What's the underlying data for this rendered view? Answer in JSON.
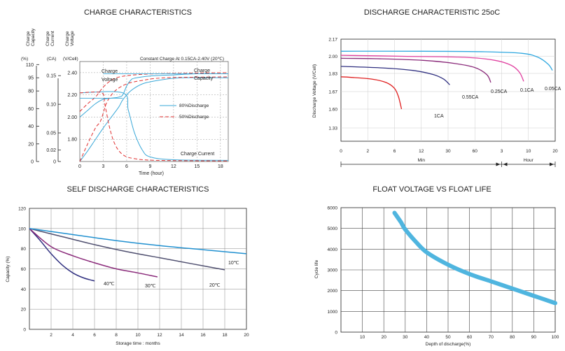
{
  "chart_data": [
    {
      "type": "line",
      "title": "CHARGE CHARACTERISTICS",
      "axis_headers": [
        "Charge Capacity",
        "Charge Current",
        "Charge Voltage"
      ],
      "axis_units": [
        "(%)",
        "(CA)",
        "(V/Cell)"
      ],
      "capacity_ticks": [
        "110",
        "95",
        "80",
        "60",
        "40",
        "20",
        "0"
      ],
      "current_ticks": [
        "0.15",
        "0.10",
        "0.05",
        "0.02",
        "0"
      ],
      "voltage_ticks": [
        "2.40",
        "2.20",
        "2.00",
        "1.80"
      ],
      "x_ticks": [
        "0",
        "3",
        "6",
        "9",
        "12",
        "15",
        "18"
      ],
      "xlabel": "Time (hour)",
      "note": "Constant Charge At 0.15CA-2.40V (20℃)",
      "labels": {
        "voltage": [
          "Charge",
          "Voltage"
        ],
        "capacity": [
          "Charge",
          "Capacity"
        ],
        "current": "Charge Current"
      },
      "legend": [
        "80%Discharge",
        "50%Discharge"
      ],
      "xlim": [
        0,
        19
      ],
      "vlim": [
        1.6,
        2.5
      ],
      "series": [
        {
          "name": "80%Discharge",
          "curve": "voltage",
          "points": [
            [
              0,
              2.0
            ],
            [
              1,
              2.06
            ],
            [
              2,
              2.12
            ],
            [
              3,
              2.16
            ],
            [
              4,
              2.17
            ],
            [
              5,
              2.18
            ],
            [
              5.5,
              2.2
            ],
            [
              6,
              2.28
            ],
            [
              6.5,
              2.33
            ],
            [
              7,
              2.35
            ],
            [
              9,
              2.37
            ],
            [
              12,
              2.38
            ],
            [
              15,
              2.39
            ],
            [
              19,
              2.39
            ]
          ]
        },
        {
          "name": "50%Discharge",
          "curve": "voltage",
          "points": [
            [
              0,
              2.05
            ],
            [
              1,
              2.12
            ],
            [
              2,
              2.18
            ],
            [
              3,
              2.27
            ],
            [
              4,
              2.33
            ],
            [
              5,
              2.36
            ],
            [
              7,
              2.38
            ],
            [
              10,
              2.39
            ],
            [
              19,
              2.4
            ]
          ]
        },
        {
          "name": "80%Discharge",
          "curve": "capacity",
          "points": [
            [
              0,
              0
            ],
            [
              1,
              12
            ],
            [
              2,
              25
            ],
            [
              3,
              38
            ],
            [
              4,
              50
            ],
            [
              5,
              62
            ],
            [
              5.5,
              70
            ],
            [
              6.5,
              80
            ],
            [
              8,
              88
            ],
            [
              10,
              92
            ],
            [
              13,
              95
            ],
            [
              19,
              95
            ]
          ]
        },
        {
          "name": "50%Discharge",
          "curve": "capacity",
          "points": [
            [
              0,
              0
            ],
            [
              1,
              20
            ],
            [
              2,
              38
            ],
            [
              2.6,
              45
            ],
            [
              3,
              55
            ],
            [
              3.5,
              68
            ],
            [
              4.5,
              80
            ],
            [
              6,
              88
            ],
            [
              8,
              92
            ],
            [
              11,
              95
            ],
            [
              19,
              96
            ]
          ]
        },
        {
          "name": "80%Discharge",
          "curve": "current",
          "points": [
            [
              0,
              0.12
            ],
            [
              5.5,
              0.12
            ],
            [
              6.2,
              0.09
            ],
            [
              7,
              0.05
            ],
            [
              8,
              0.02
            ],
            [
              9,
              0.008
            ],
            [
              12,
              0.003
            ],
            [
              19,
              0.002
            ]
          ]
        },
        {
          "name": "50%Discharge",
          "curve": "current",
          "points": [
            [
              0,
              0.12
            ],
            [
              2.8,
              0.12
            ],
            [
              3.2,
              0.1
            ],
            [
              3.8,
              0.06
            ],
            [
              4.5,
              0.03
            ],
            [
              5.5,
              0.012
            ],
            [
              7,
              0.005
            ],
            [
              10,
              0.002
            ],
            [
              19,
              0.001
            ]
          ]
        }
      ]
    },
    {
      "type": "line",
      "title": "DISCHARGE CHARACTERISTIC 25oC",
      "ylabel": "Discharge Voltage (V/Cell)",
      "y_ticks": [
        "2.17",
        "2.00",
        "1.83",
        "1.67",
        "1.60",
        "1.33"
      ],
      "x_ticks": [
        "0",
        "2",
        "6",
        "12",
        "30",
        "60",
        "3",
        "10",
        "20"
      ],
      "x_units": [
        "Min",
        "Hour"
      ],
      "series": [
        {
          "name": "1CA",
          "color": "#e02020",
          "points": [
            [
              0,
              1.8
            ],
            [
              0.5,
              1.795
            ],
            [
              1.5,
              1.78
            ],
            [
              2.2,
              1.75
            ],
            [
              2.6,
              1.7
            ],
            [
              2.8,
              1.65
            ],
            [
              2.95,
              1.6
            ]
          ]
        },
        {
          "name": "0.55CA",
          "color": "#303080",
          "points": [
            [
              0,
              1.9
            ],
            [
              2,
              1.885
            ],
            [
              3.5,
              1.86
            ],
            [
              4.5,
              1.82
            ],
            [
              5.0,
              1.78
            ],
            [
              5.3,
              1.73
            ]
          ]
        },
        {
          "name": "0.25CA",
          "color": "#8a2a7a",
          "points": [
            [
              0,
              1.98
            ],
            [
              2,
              1.975
            ],
            [
              4,
              1.96
            ],
            [
              5.5,
              1.93
            ],
            [
              6.5,
              1.89
            ],
            [
              7.1,
              1.82
            ],
            [
              7.3,
              1.75
            ]
          ]
        },
        {
          "name": "0.1CA",
          "color": "#e040a0",
          "points": [
            [
              0,
              2.01
            ],
            [
              3,
              2.0
            ],
            [
              6,
              1.99
            ],
            [
              7.5,
              1.96
            ],
            [
              8.3,
              1.91
            ],
            [
              8.7,
              1.84
            ],
            [
              8.9,
              1.76
            ]
          ]
        },
        {
          "name": "0.05CA",
          "color": "#30a8e0",
          "points": [
            [
              0,
              2.05
            ],
            [
              4,
              2.05
            ],
            [
              7,
              2.045
            ],
            [
              8.8,
              2.03
            ],
            [
              9.6,
              1.99
            ],
            [
              10.1,
              1.92
            ],
            [
              10.3,
              1.86
            ]
          ]
        }
      ]
    },
    {
      "type": "line",
      "title": "SELF DISCHARGE CHARACTERISTICS",
      "ylabel": "Capacity (%)",
      "xlabel": "Storage time : months",
      "y_ticks": [
        "120",
        "100",
        "80",
        "60",
        "40",
        "20",
        "0"
      ],
      "x_ticks": [
        "2",
        "4",
        "6",
        "8",
        "10",
        "12",
        "14",
        "16",
        "18",
        "20"
      ],
      "xlim": [
        0,
        20
      ],
      "ylim": [
        0,
        120
      ],
      "series": [
        {
          "name": "40℃",
          "color": "#303080",
          "points": [
            [
              0,
              100
            ],
            [
              1,
              88
            ],
            [
              2,
              75
            ],
            [
              3,
              64
            ],
            [
              4,
              56
            ],
            [
              5,
              51
            ],
            [
              6,
              48
            ]
          ]
        },
        {
          "name": "30℃",
          "color": "#8a2a7a",
          "points": [
            [
              0,
              100
            ],
            [
              2,
              82
            ],
            [
              4,
              73
            ],
            [
              6,
              66
            ],
            [
              8,
              60
            ],
            [
              10,
              56
            ],
            [
              11.8,
              52
            ]
          ]
        },
        {
          "name": "20℃",
          "color": "#505070",
          "points": [
            [
              0,
              100
            ],
            [
              3,
              92
            ],
            [
              6,
              84
            ],
            [
              9,
              77
            ],
            [
              12,
              71
            ],
            [
              15,
              65
            ],
            [
              18,
              59
            ]
          ]
        },
        {
          "name": "10℃",
          "color": "#2090d0",
          "points": [
            [
              0,
              100
            ],
            [
              4,
              94
            ],
            [
              8,
              88
            ],
            [
              12,
              83
            ],
            [
              16,
              79
            ],
            [
              20,
              75
            ]
          ]
        }
      ]
    },
    {
      "type": "line",
      "title": "FLOAT VOLTAGE VS FLOAT LIFE",
      "ylabel": "Cycle life",
      "xlabel": "Depth of discharge(%)",
      "y_ticks": [
        "6000",
        "5000",
        "4000",
        "3000",
        "2000",
        "1000",
        "0"
      ],
      "x_ticks": [
        "10",
        "20",
        "30",
        "40",
        "50",
        "60",
        "70",
        "80",
        "90",
        "100"
      ],
      "xlim": [
        0,
        100
      ],
      "ylim": [
        0,
        6000
      ],
      "series": [
        {
          "name": "",
          "color": "#4fb5df",
          "points": [
            [
              25,
              5750
            ],
            [
              28,
              5300
            ],
            [
              30,
              4950
            ],
            [
              35,
              4350
            ],
            [
              40,
              3850
            ],
            [
              50,
              3250
            ],
            [
              60,
              2800
            ],
            [
              70,
              2450
            ],
            [
              80,
              2100
            ],
            [
              90,
              1750
            ],
            [
              100,
              1400
            ]
          ]
        }
      ]
    }
  ]
}
